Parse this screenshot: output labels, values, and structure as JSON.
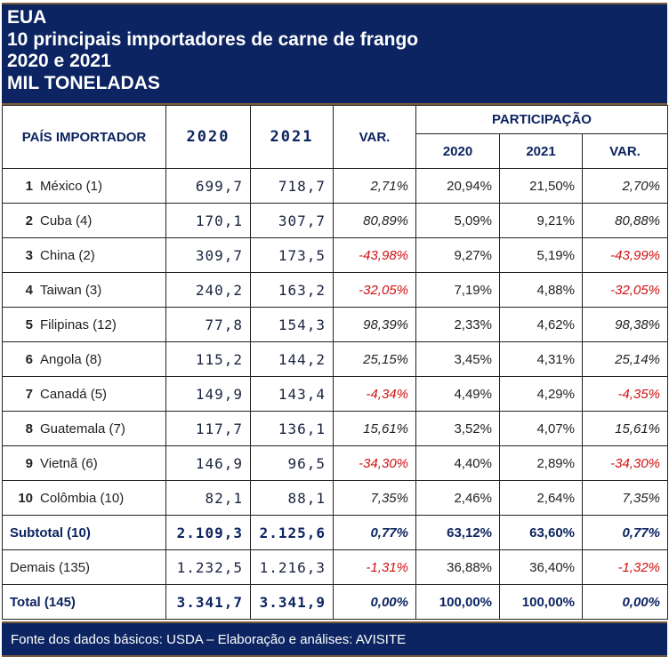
{
  "title_lines": [
    "EUA",
    "10 principais importadores de carne de frango",
    "2020 e 2021",
    "MIL TONELADAS"
  ],
  "chart_data": {
    "type": "table",
    "headers": {
      "country": "PAÍS IMPORTADOR",
      "y2020": "2020",
      "y2021": "2021",
      "var": "VAR.",
      "share_group": "PARTICIPAÇÃO",
      "share2020": "2020",
      "share2021": "2021",
      "share_var": "VAR."
    },
    "rows": [
      {
        "rank": "1",
        "country": "México (1)",
        "v2020": "699,7",
        "v2021": "718,7",
        "var": "2,71%",
        "s2020": "20,94%",
        "s2021": "21,50%",
        "svar": "2,70%"
      },
      {
        "rank": "2",
        "country": "Cuba (4)",
        "v2020": "170,1",
        "v2021": "307,7",
        "var": "80,89%",
        "s2020": "5,09%",
        "s2021": "9,21%",
        "svar": "80,88%"
      },
      {
        "rank": "3",
        "country": "China (2)",
        "v2020": "309,7",
        "v2021": "173,5",
        "var": "-43,98%",
        "s2020": "9,27%",
        "s2021": "5,19%",
        "svar": "-43,99%"
      },
      {
        "rank": "4",
        "country": "Taiwan (3)",
        "v2020": "240,2",
        "v2021": "163,2",
        "var": "-32,05%",
        "s2020": "7,19%",
        "s2021": "4,88%",
        "svar": "-32,05%"
      },
      {
        "rank": "5",
        "country": "Filipinas (12)",
        "v2020": "77,8",
        "v2021": "154,3",
        "var": "98,39%",
        "s2020": "2,33%",
        "s2021": "4,62%",
        "svar": "98,38%"
      },
      {
        "rank": "6",
        "country": "Angola (8)",
        "v2020": "115,2",
        "v2021": "144,2",
        "var": "25,15%",
        "s2020": "3,45%",
        "s2021": "4,31%",
        "svar": "25,14%"
      },
      {
        "rank": "7",
        "country": "Canadá (5)",
        "v2020": "149,9",
        "v2021": "143,4",
        "var": "-4,34%",
        "s2020": "4,49%",
        "s2021": "4,29%",
        "svar": "-4,35%"
      },
      {
        "rank": "8",
        "country": "Guatemala (7)",
        "v2020": "117,7",
        "v2021": "136,1",
        "var": "15,61%",
        "s2020": "3,52%",
        "s2021": "4,07%",
        "svar": "15,61%"
      },
      {
        "rank": "9",
        "country": "Vietnã (6)",
        "v2020": "146,9",
        "v2021": "96,5",
        "var": "-34,30%",
        "s2020": "4,40%",
        "s2021": "2,89%",
        "svar": "-34,30%"
      },
      {
        "rank": "10",
        "country": "Colômbia (10)",
        "v2020": "82,1",
        "v2021": "88,1",
        "var": "7,35%",
        "s2020": "2,46%",
        "s2021": "2,64%",
        "svar": "7,35%"
      }
    ],
    "summary": [
      {
        "country": "Subtotal (10)",
        "v2020": "2.109,3",
        "v2021": "2.125,6",
        "var": "0,77%",
        "s2020": "63,12%",
        "s2021": "63,60%",
        "svar": "0,77%",
        "bold": true
      },
      {
        "country": "Demais (135)",
        "v2020": "1.232,5",
        "v2021": "1.216,3",
        "var": "-1,31%",
        "s2020": "36,88%",
        "s2021": "36,40%",
        "svar": "-1,32%",
        "bold": false
      },
      {
        "country": "Total (145)",
        "v2020": "3.341,7",
        "v2021": "3.341,9",
        "var": "0,00%",
        "s2020": "100,00%",
        "s2021": "100,00%",
        "svar": "0,00%",
        "bold": true
      }
    ]
  },
  "footer": "Fonte dos dados básicos: USDA – Elaboração e análises: AVISITE",
  "colors": {
    "header_bg": "#0c2461",
    "negative": "#d01010"
  }
}
